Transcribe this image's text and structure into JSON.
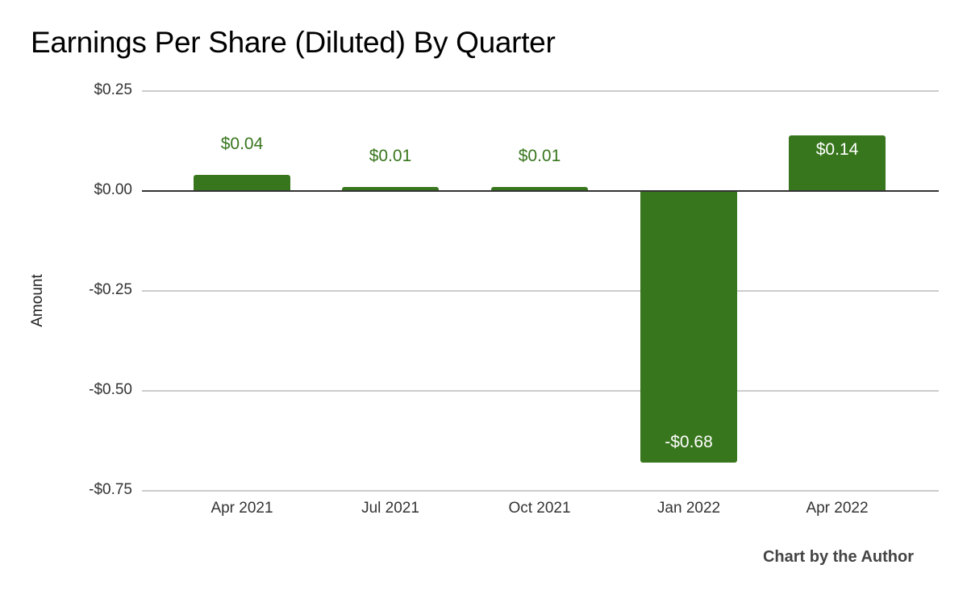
{
  "chart_data": {
    "type": "bar",
    "title": "Earnings Per Share (Diluted) By Quarter",
    "xlabel": "",
    "ylabel": "Amount",
    "categories": [
      "Apr 2021",
      "Jul 2021",
      "Oct 2021",
      "Jan 2022",
      "Apr 2022"
    ],
    "values": [
      0.04,
      0.01,
      0.01,
      -0.68,
      0.14
    ],
    "data_labels": [
      "$0.04",
      "$0.01",
      "$0.01",
      "-$0.68",
      "$0.14"
    ],
    "ylim": [
      -0.75,
      0.25
    ],
    "yticks": [
      0.25,
      0.0,
      -0.25,
      -0.5,
      -0.75
    ],
    "ytick_labels": [
      "$0.25",
      "$0.00",
      "-$0.25",
      "-$0.50",
      "-$0.75"
    ],
    "grid": true,
    "legend": "none",
    "bar_color": "#38761d",
    "annotation": "Chart by the Author"
  },
  "title": "Earnings Per Share (Diluted) By Quarter",
  "y_axis_label": "Amount",
  "credit": "Chart by the Author"
}
